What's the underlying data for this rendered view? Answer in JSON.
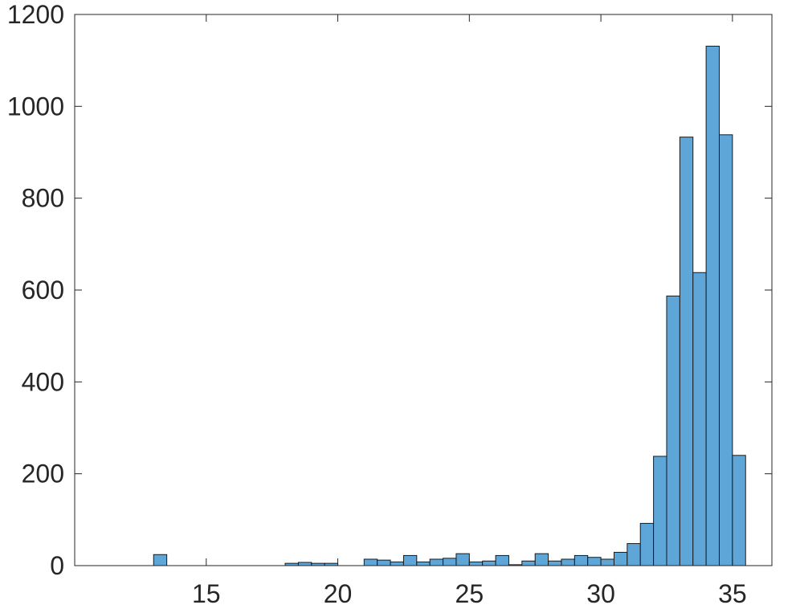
{
  "chart_data": {
    "type": "bar",
    "title": "",
    "xlabel": "",
    "ylabel": "",
    "xlim": [
      10,
      36.5
    ],
    "ylim": [
      0,
      1200
    ],
    "grid": false,
    "legend": "none",
    "bar_color": "#5fa6d8",
    "edge_color": "#1a1a1a",
    "bin_width": 0.5,
    "x_ticks": [
      15,
      20,
      25,
      30,
      35
    ],
    "x_tick_labels": [
      "15",
      "20",
      "25",
      "30",
      "35"
    ],
    "y_ticks": [
      0,
      200,
      400,
      600,
      800,
      1000,
      1200
    ],
    "y_tick_labels": [
      "0",
      "200",
      "400",
      "600",
      "800",
      "1000",
      "1200"
    ],
    "bins": [
      {
        "start": 13.0,
        "value": 24
      },
      {
        "start": 18.0,
        "value": 5
      },
      {
        "start": 18.5,
        "value": 7
      },
      {
        "start": 19.0,
        "value": 5
      },
      {
        "start": 19.5,
        "value": 5
      },
      {
        "start": 21.0,
        "value": 14
      },
      {
        "start": 21.5,
        "value": 12
      },
      {
        "start": 22.0,
        "value": 8
      },
      {
        "start": 22.5,
        "value": 22
      },
      {
        "start": 23.0,
        "value": 8
      },
      {
        "start": 23.5,
        "value": 14
      },
      {
        "start": 24.0,
        "value": 16
      },
      {
        "start": 24.5,
        "value": 26
      },
      {
        "start": 25.0,
        "value": 8
      },
      {
        "start": 25.5,
        "value": 10
      },
      {
        "start": 26.0,
        "value": 22
      },
      {
        "start": 26.5,
        "value": 2
      },
      {
        "start": 27.0,
        "value": 10
      },
      {
        "start": 27.5,
        "value": 26
      },
      {
        "start": 28.0,
        "value": 10
      },
      {
        "start": 28.5,
        "value": 14
      },
      {
        "start": 29.0,
        "value": 22
      },
      {
        "start": 29.5,
        "value": 18
      },
      {
        "start": 30.0,
        "value": 14
      },
      {
        "start": 30.5,
        "value": 29
      },
      {
        "start": 31.0,
        "value": 48
      },
      {
        "start": 31.5,
        "value": 92
      },
      {
        "start": 32.0,
        "value": 238
      },
      {
        "start": 32.5,
        "value": 587
      },
      {
        "start": 33.0,
        "value": 933
      },
      {
        "start": 33.5,
        "value": 638
      },
      {
        "start": 34.0,
        "value": 1131
      },
      {
        "start": 34.5,
        "value": 938
      },
      {
        "start": 35.0,
        "value": 240
      }
    ]
  }
}
